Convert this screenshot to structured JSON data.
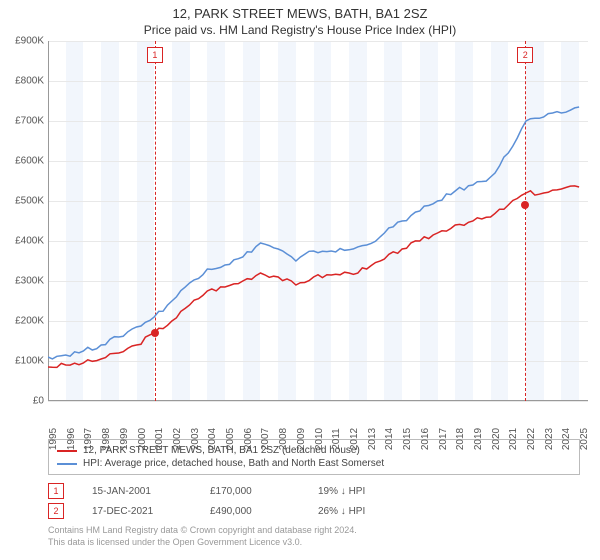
{
  "title": "12, PARK STREET MEWS, BATH, BA1 2SZ",
  "subtitle": "Price paid vs. HM Land Registry's House Price Index (HPI)",
  "chart": {
    "type": "line",
    "background_color": "#ffffff",
    "shaded_band_color": "#f2f6fc",
    "grid_color": "#e8e8e8",
    "ylim": [
      0,
      900
    ],
    "ytick_step": 100,
    "ytick_prefix": "£",
    "ytick_suffix": "K",
    "yticks": [
      "£0",
      "£100K",
      "£200K",
      "£300K",
      "£400K",
      "£500K",
      "£600K",
      "£700K",
      "£800K",
      "£900K"
    ],
    "xlim": [
      1995,
      2025.5
    ],
    "xticks": [
      1995,
      1996,
      1997,
      1998,
      1999,
      2000,
      2001,
      2002,
      2003,
      2004,
      2005,
      2006,
      2007,
      2008,
      2009,
      2010,
      2011,
      2012,
      2013,
      2014,
      2015,
      2016,
      2017,
      2018,
      2019,
      2020,
      2021,
      2022,
      2023,
      2024,
      2025
    ],
    "series": [
      {
        "name": "price_paid",
        "label": "12, PARK STREET MEWS, BATH, BA1 2SZ (detached house)",
        "color": "#d92424",
        "line_width": 1.5,
        "points": [
          [
            1995,
            85
          ],
          [
            1996,
            90
          ],
          [
            1997,
            95
          ],
          [
            1998,
            105
          ],
          [
            1999,
            120
          ],
          [
            2000,
            140
          ],
          [
            2001,
            170
          ],
          [
            2002,
            200
          ],
          [
            2003,
            240
          ],
          [
            2004,
            275
          ],
          [
            2005,
            285
          ],
          [
            2006,
            300
          ],
          [
            2007,
            320
          ],
          [
            2008,
            310
          ],
          [
            2009,
            290
          ],
          [
            2010,
            310
          ],
          [
            2011,
            315
          ],
          [
            2012,
            320
          ],
          [
            2013,
            330
          ],
          [
            2014,
            355
          ],
          [
            2015,
            380
          ],
          [
            2016,
            400
          ],
          [
            2017,
            420
          ],
          [
            2018,
            440
          ],
          [
            2019,
            450
          ],
          [
            2020,
            460
          ],
          [
            2021,
            490
          ],
          [
            2022,
            520
          ],
          [
            2023,
            520
          ],
          [
            2024,
            530
          ],
          [
            2025,
            535
          ]
        ]
      },
      {
        "name": "hpi",
        "label": "HPI: Average price, detached house, Bath and North East Somerset",
        "color": "#5b8fd6",
        "line_width": 1.5,
        "points": [
          [
            1995,
            110
          ],
          [
            1996,
            115
          ],
          [
            1997,
            125
          ],
          [
            1998,
            140
          ],
          [
            1999,
            160
          ],
          [
            2000,
            185
          ],
          [
            2001,
            210
          ],
          [
            2002,
            250
          ],
          [
            2003,
            295
          ],
          [
            2004,
            330
          ],
          [
            2005,
            340
          ],
          [
            2006,
            360
          ],
          [
            2007,
            395
          ],
          [
            2008,
            380
          ],
          [
            2009,
            350
          ],
          [
            2010,
            375
          ],
          [
            2011,
            375
          ],
          [
            2012,
            378
          ],
          [
            2013,
            390
          ],
          [
            2014,
            420
          ],
          [
            2015,
            450
          ],
          [
            2016,
            475
          ],
          [
            2017,
            500
          ],
          [
            2018,
            525
          ],
          [
            2019,
            540
          ],
          [
            2020,
            560
          ],
          [
            2021,
            620
          ],
          [
            2022,
            700
          ],
          [
            2023,
            710
          ],
          [
            2024,
            720
          ],
          [
            2025,
            735
          ]
        ]
      }
    ],
    "sale_markers": [
      {
        "n": "1",
        "year": 2001.04,
        "price": 170,
        "color": "#d92424"
      },
      {
        "n": "2",
        "year": 2021.96,
        "price": 490,
        "color": "#d92424"
      }
    ]
  },
  "legend": {
    "items": [
      {
        "color": "#d92424",
        "label": "12, PARK STREET MEWS, BATH, BA1 2SZ (detached house)"
      },
      {
        "color": "#5b8fd6",
        "label": "HPI: Average price, detached house, Bath and North East Somerset"
      }
    ]
  },
  "sales_table": {
    "rows": [
      {
        "n": "1",
        "color": "#d92424",
        "date": "15-JAN-2001",
        "price": "£170,000",
        "delta": "19% ↓ HPI"
      },
      {
        "n": "2",
        "color": "#d92424",
        "date": "17-DEC-2021",
        "price": "£490,000",
        "delta": "26% ↓ HPI"
      }
    ]
  },
  "footer": {
    "line1": "Contains HM Land Registry data © Crown copyright and database right 2024.",
    "line2": "This data is licensed under the Open Government Licence v3.0."
  }
}
